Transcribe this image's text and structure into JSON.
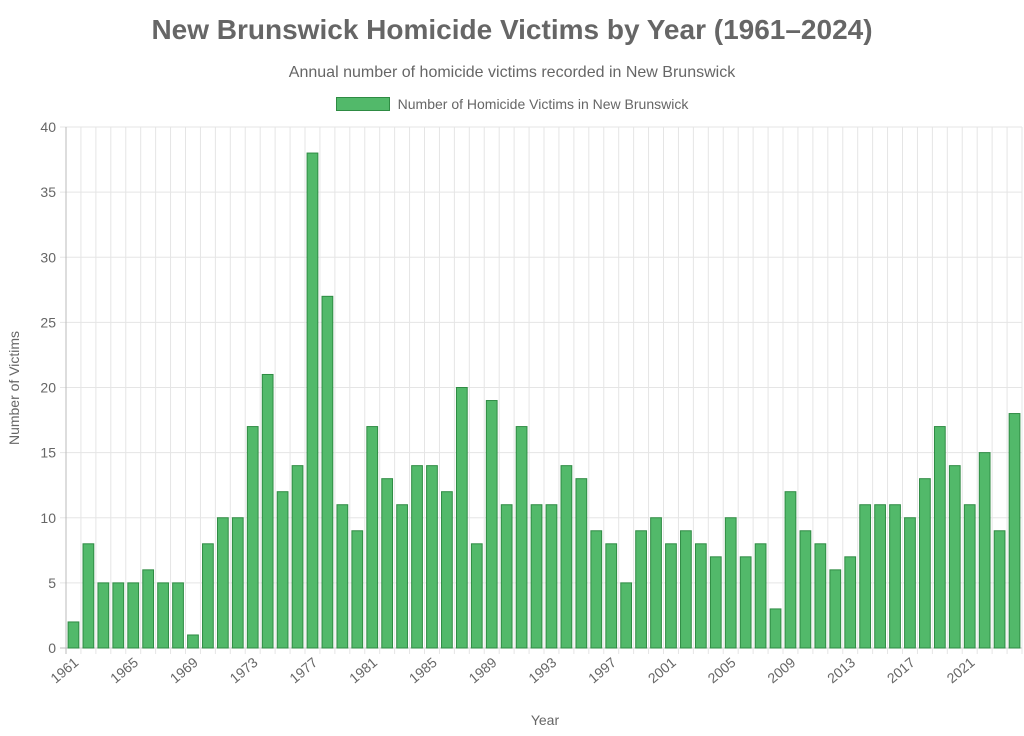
{
  "chart_data": {
    "type": "bar",
    "title": "New Brunswick Homicide Victims by Year (1961–2024)",
    "subtitle": "Annual number of homicide victims recorded in New Brunswick",
    "xlabel": "Year",
    "ylabel": "Number of Victims",
    "ylim": [
      0,
      40
    ],
    "yticks": [
      0,
      5,
      10,
      15,
      20,
      25,
      30,
      35,
      40
    ],
    "grid": true,
    "legend_position": "top",
    "categories": [
      "1961",
      "1962",
      "1963",
      "1964",
      "1965",
      "1966",
      "1967",
      "1968",
      "1969",
      "1970",
      "1971",
      "1972",
      "1973",
      "1974",
      "1975",
      "1976",
      "1977",
      "1978",
      "1979",
      "1980",
      "1981",
      "1982",
      "1983",
      "1984",
      "1985",
      "1986",
      "1987",
      "1988",
      "1989",
      "1990",
      "1991",
      "1992",
      "1993",
      "1994",
      "1995",
      "1996",
      "1997",
      "1998",
      "1999",
      "2000",
      "2001",
      "2002",
      "2003",
      "2004",
      "2005",
      "2006",
      "2007",
      "2008",
      "2009",
      "2010",
      "2011",
      "2012",
      "2013",
      "2014",
      "2015",
      "2016",
      "2017",
      "2018",
      "2019",
      "2020",
      "2021",
      "2022",
      "2023",
      "2024"
    ],
    "x_tick_labels": [
      "1961",
      "1965",
      "1969",
      "1973",
      "1977",
      "1981",
      "1985",
      "1989",
      "1993",
      "1997",
      "2001",
      "2005",
      "2009",
      "2013",
      "2017",
      "2021"
    ],
    "series": [
      {
        "name": "Number of Homicide Victims in New Brunswick",
        "color": "#52b96a",
        "border_color": "#2e8b43",
        "values": [
          2,
          8,
          5,
          5,
          5,
          6,
          5,
          5,
          1,
          8,
          10,
          10,
          17,
          21,
          12,
          14,
          38,
          27,
          11,
          9,
          17,
          13,
          11,
          14,
          14,
          12,
          20,
          8,
          19,
          11,
          17,
          11,
          11,
          14,
          13,
          9,
          8,
          5,
          9,
          10,
          8,
          9,
          8,
          7,
          10,
          7,
          8,
          3,
          12,
          9,
          8,
          6,
          7,
          11,
          11,
          11,
          10,
          13,
          17,
          14,
          11,
          15,
          9,
          18
        ]
      }
    ]
  }
}
